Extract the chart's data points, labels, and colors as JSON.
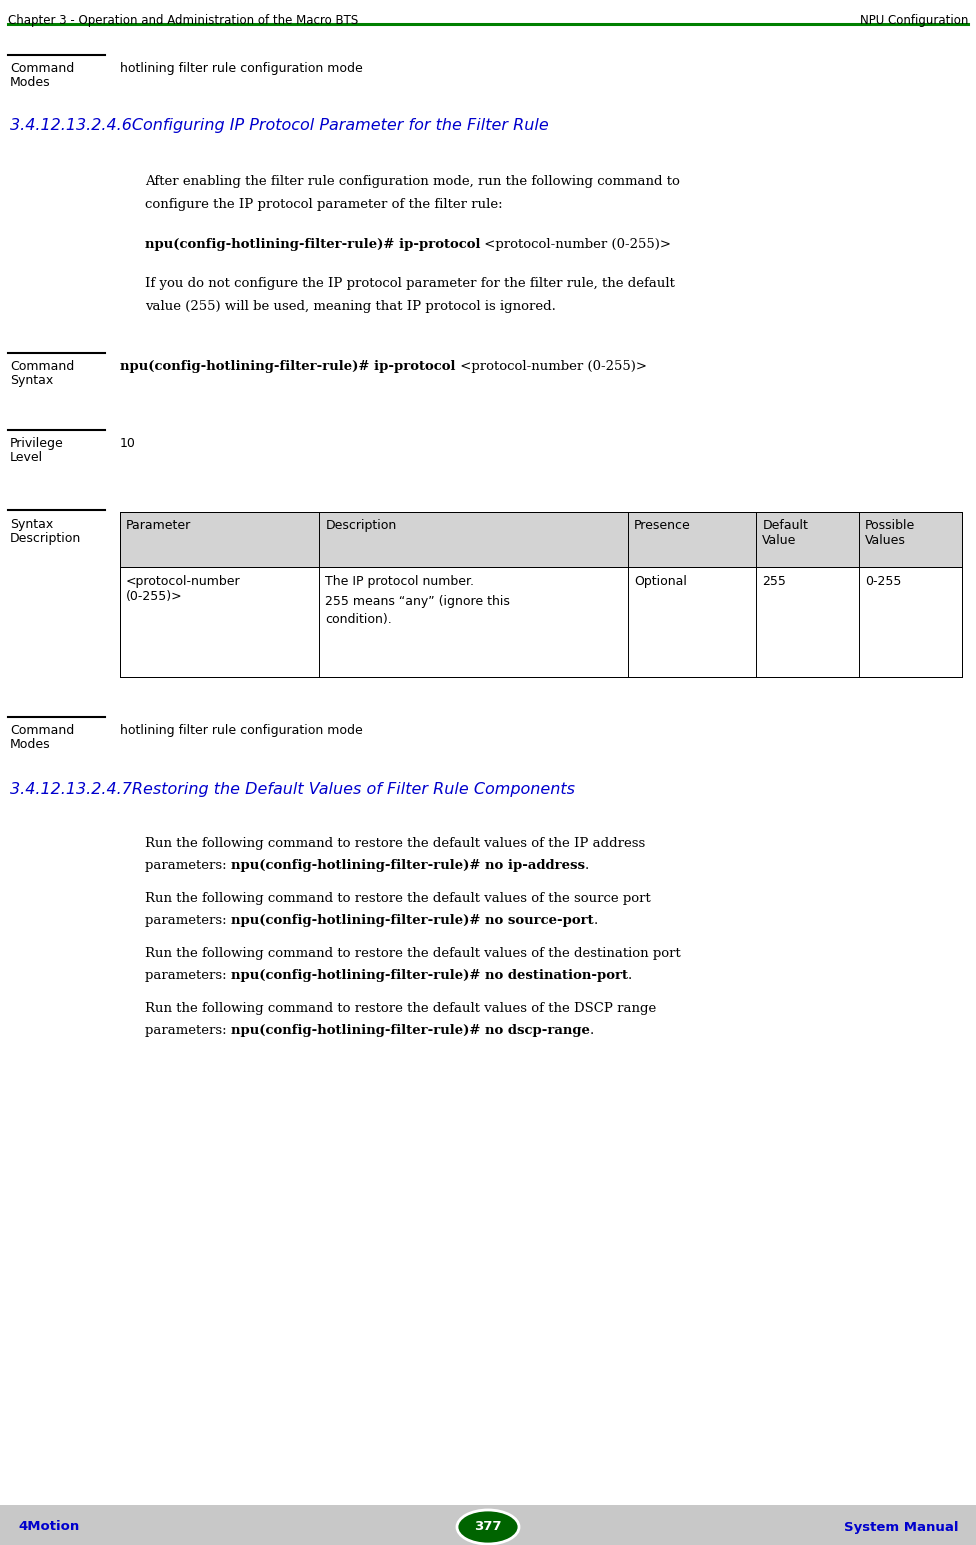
{
  "header_left": "Chapter 3 - Operation and Administration of the Macro BTS",
  "header_right": "NPU Configuration",
  "header_line_color": "#008000",
  "footer_left": "4Motion",
  "footer_right": "System Manual",
  "footer_page": "377",
  "footer_bg": "#c8c8c8",
  "footer_text_color": "#0000cd",
  "footer_oval_color": "#006400",
  "bg_color": "#ffffff",
  "section_title_1": "3.4.12.13.2.4.6Configuring IP Protocol Parameter for the Filter Rule",
  "section_title_2": "3.4.12.13.2.4.7Restoring the Default Values of Filter Rule Components",
  "section_title_color": "#0000cd",
  "cmd_modes_value": "hotlining filter rule configuration mode",
  "cmd_syntax_bold": "npu(config-hotlining-filter-rule)# ip-protocol",
  "cmd_syntax_normal": " <protocol-number (0-255)>",
  "privilege_value": "10",
  "body_line1": "After enabling the filter rule configuration mode, run the following command to",
  "body_line2": "configure the IP protocol parameter of the filter rule:",
  "body_cmd_bold": "npu(config-hotlining-filter-rule)# ip-protocol",
  "body_cmd_normal": " <protocol-number (0-255)>",
  "body_line3": "If you do not configure the IP protocol parameter for the filter rule, the default",
  "body_line4": "value (255) will be used, meaning that IP protocol is ignored.",
  "table_headers": [
    "Parameter",
    "Description",
    "Presence",
    "Default\nValue",
    "Possible\nValues"
  ],
  "table_col_widths": [
    155,
    240,
    100,
    80,
    80
  ],
  "table_row_param": "<protocol-number\n(0-255)>",
  "table_row_desc_1": "The IP protocol number.",
  "table_row_desc_2": "255 means “any” (ignore this",
  "table_row_desc_3": "condition).",
  "table_row_presence": "Optional",
  "table_row_default": "255",
  "table_row_possible": "0-255",
  "table_header_bg": "#d3d3d3",
  "table_border_color": "#000000",
  "restore_1_line1": "Run the following command to restore the default values of the IP address",
  "restore_1_line2_normal": "parameters: ",
  "restore_1_line2_bold": "npu(config-hotlining-filter-rule)# no ip-address",
  "restore_1_line2_end": ".",
  "restore_2_line1": "Run the following command to restore the default values of the source port",
  "restore_2_line2_normal": "parameters: ",
  "restore_2_line2_bold": "npu(config-hotlining-filter-rule)# no source-port",
  "restore_2_line2_end": ".",
  "restore_3_line1": "Run the following command to restore the default values of the destination port",
  "restore_3_line2_normal": "parameters: ",
  "restore_3_line2_bold": "npu(config-hotlining-filter-rule)# no destination-port",
  "restore_3_line2_end": ".",
  "restore_4_line1": "Run the following command to restore the default values of the DSCP range",
  "restore_4_line2_normal": "parameters: ",
  "restore_4_line2_bold": "npu(config-hotlining-filter-rule)# no dscp-range",
  "restore_4_line2_end": "."
}
